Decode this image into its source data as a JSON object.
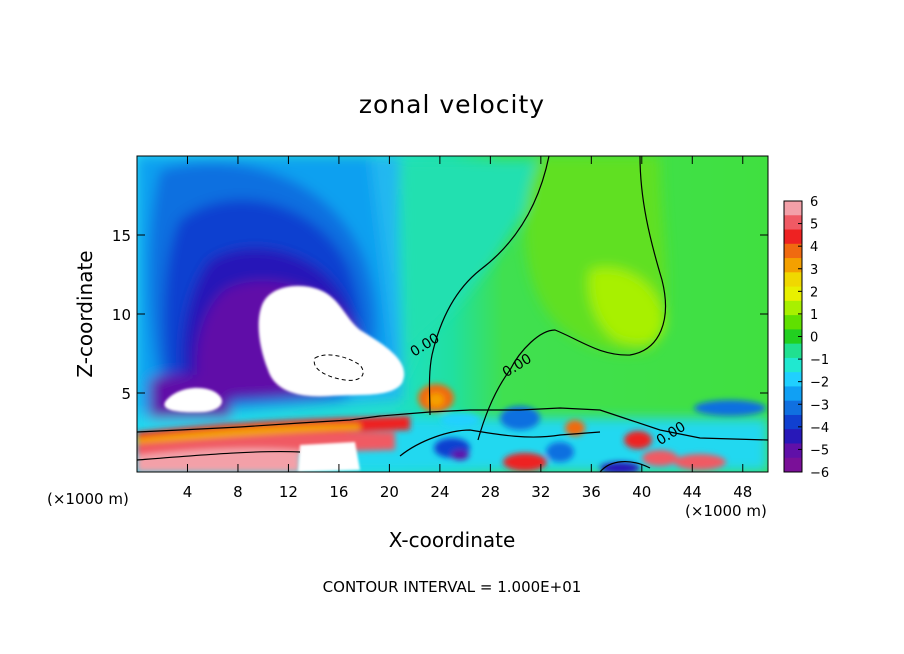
{
  "chart_data": {
    "type": "heatmap",
    "title": "zonal velocity",
    "xlabel": "X-coordinate",
    "ylabel": "Z-coordinate",
    "x_unit_left": "(×1000 m)",
    "x_unit_right": "(×1000 m)",
    "footer": "CONTOUR INTERVAL = 1.000E+01",
    "xlim": [
      0,
      50
    ],
    "ylim": [
      0,
      20
    ],
    "xticks": [
      4,
      8,
      12,
      16,
      20,
      24,
      28,
      32,
      36,
      40,
      44,
      48
    ],
    "yticks": [
      5,
      10,
      15
    ],
    "colorbar": {
      "min": -6,
      "max": 6,
      "labels": [
        "6",
        "5",
        "4",
        "3",
        "2",
        "1",
        "0",
        "−1",
        "−2",
        "−3",
        "−4",
        "−5",
        "−6"
      ],
      "colors": [
        "#f3a0a8",
        "#f05a64",
        "#ee2222",
        "#f06a10",
        "#f4a000",
        "#f0d800",
        "#e8f000",
        "#a8f000",
        "#60e000",
        "#22d020",
        "#20e090",
        "#20e8d0",
        "#20d0ff",
        "#10a0f4",
        "#1070e0",
        "#1040d0",
        "#2818b8",
        "#6010a8",
        "#7a1098"
      ]
    },
    "contour_labels": [
      {
        "text": "0.00",
        "x": 23.0,
        "y": 7.8
      },
      {
        "text": "0.00",
        "x": 30.3,
        "y": 6.5
      },
      {
        "text": "0.00",
        "x": 42.5,
        "y": 2.2
      }
    ]
  }
}
